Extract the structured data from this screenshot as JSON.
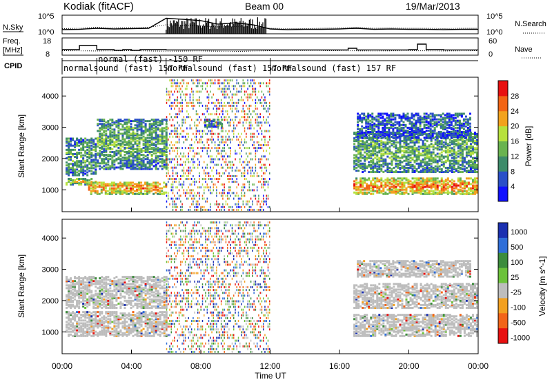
{
  "chart_data": [
    {
      "type": "line",
      "panel": "noise",
      "title": "Kodiak (fitACF)",
      "beam_label": "Beam 00",
      "date": "19/Mar/2013",
      "left_label": "N.Sky",
      "right_label": "N.Search",
      "left_ticks": [
        "10^5",
        "10^0"
      ],
      "right_ticks": [
        "10^5",
        "10^0"
      ],
      "series": [
        {
          "name": "N.Sky",
          "x": [
            0,
            1,
            2,
            3,
            4,
            5,
            6,
            7,
            8,
            9,
            10,
            11,
            12,
            13,
            14,
            15,
            16,
            17,
            18,
            19,
            20,
            21,
            22,
            23,
            24
          ],
          "y": [
            1.2,
            1.3,
            1.6,
            1.4,
            1.5,
            1.6,
            4.5,
            4.2,
            3.8,
            2.8,
            3.2,
            2.6,
            1.4,
            1.2,
            1.3,
            1.3,
            1.4,
            1.6,
            1.3,
            1.4,
            1.3,
            1.3,
            1.2,
            1.3,
            1.3
          ]
        },
        {
          "name": "N.Search",
          "x": [
            0,
            1,
            2,
            3,
            4,
            5,
            6,
            7,
            8,
            9,
            10,
            11,
            12,
            13,
            14,
            15,
            16,
            17,
            18,
            19,
            20,
            21,
            22,
            23,
            24
          ],
          "y": [
            1.5,
            1.6,
            1.9,
            1.7,
            1.8,
            1.9,
            2.6,
            2.5,
            2.3,
            2.0,
            2.1,
            1.9,
            1.6,
            1.5,
            1.5,
            1.6,
            1.7,
            1.9,
            1.6,
            1.7,
            1.6,
            1.6,
            1.5,
            1.6,
            1.6
          ]
        }
      ]
    },
    {
      "type": "line",
      "panel": "frequency",
      "left_label": "Freq.",
      "left_unit": "[MHz]",
      "right_label": "Nave",
      "left_ticks": [
        "18",
        "8"
      ],
      "right_ticks": [
        "60",
        "0"
      ],
      "series": [
        {
          "name": "Freq.",
          "x": [
            0,
            0.5,
            1,
            1.5,
            2,
            2.5,
            3,
            3.5,
            4,
            4.5,
            5,
            6,
            8,
            10,
            12,
            14,
            15,
            16,
            16.5,
            17,
            18,
            19,
            20,
            20.5,
            21,
            22,
            24
          ],
          "y": [
            11,
            11,
            14,
            14,
            11,
            11,
            10.5,
            11,
            10.5,
            11,
            11,
            10.8,
            10.8,
            10.8,
            10.8,
            10.8,
            10.8,
            10.8,
            12,
            10.8,
            10.8,
            10.8,
            11,
            15,
            11,
            10.8,
            10.8
          ]
        },
        {
          "name": "Nave",
          "x": [
            0,
            2,
            4,
            6,
            8,
            10,
            12,
            14,
            16,
            18,
            20,
            22,
            24
          ],
          "y": [
            15,
            14,
            15,
            13,
            14,
            12,
            15,
            16,
            15,
            14,
            15,
            14,
            15
          ]
        }
      ]
    },
    {
      "type": "table",
      "panel": "cpid",
      "label": "CPID",
      "segments": [
        {
          "start": 0,
          "end": 2,
          "name": "normalsound (fast) 157 RF"
        },
        {
          "start": 2,
          "end": 6,
          "name": "normal (fast) -150 RF"
        },
        {
          "start": 6,
          "end": 12,
          "name": "normalsound (fast) 157 RF"
        },
        {
          "start": 12,
          "end": 24,
          "name": "normalsound (fast) 157 RF"
        }
      ]
    },
    {
      "type": "heatmap",
      "panel": "power",
      "ylabel": "Slant Range [km]",
      "y_ticks": [
        1000,
        2000,
        3000,
        4000
      ],
      "ylim": [
        300,
        4600
      ],
      "xlim": [
        0,
        24
      ],
      "colorbar_label": "Power [dB]",
      "colorbar_ticks": [
        4,
        8,
        12,
        16,
        20,
        24,
        28
      ],
      "colorbar_colors": [
        "#1010ff",
        "#2a4fc8",
        "#3d8b6a",
        "#69b34f",
        "#b7e13d",
        "#f2a21d",
        "#f26414",
        "#e81010"
      ],
      "bands": [
        {
          "t0": 0.2,
          "t1": 2.0,
          "r0": 1200,
          "r1": 1400,
          "level": 0.6
        },
        {
          "t0": 0.2,
          "t1": 2.0,
          "r0": 1500,
          "r1": 2700,
          "level": 0.35
        },
        {
          "t0": 1.5,
          "t1": 6.0,
          "r0": 900,
          "r1": 1300,
          "level": 0.8
        },
        {
          "t0": 2.0,
          "t1": 6.0,
          "r0": 1700,
          "r1": 3300,
          "level": 0.4
        },
        {
          "t0": 8.2,
          "t1": 9.2,
          "r0": 3050,
          "r1": 3300,
          "level": 0.3
        },
        {
          "t0": 16.8,
          "t1": 24.0,
          "r0": 900,
          "r1": 1400,
          "level": 0.85
        },
        {
          "t0": 16.8,
          "t1": 24.0,
          "r0": 1600,
          "r1": 2900,
          "level": 0.4
        },
        {
          "t0": 17.0,
          "t1": 23.5,
          "r0": 2700,
          "r1": 3500,
          "level": 0.2
        }
      ]
    },
    {
      "type": "heatmap",
      "panel": "velocity",
      "ylabel": "Slant Range [km]",
      "xlabel": "Time UT",
      "x_ticks": [
        "00:00",
        "04:00",
        "08:00",
        "12:00",
        "16:00",
        "20:00",
        "00:00"
      ],
      "y_ticks": [
        1000,
        2000,
        3000,
        4000
      ],
      "ylim": [
        300,
        4600
      ],
      "xlim": [
        0,
        24
      ],
      "colorbar_label": "Velocity [m s^-1]",
      "colorbar_ticks": [
        1000,
        500,
        100,
        25,
        -25,
        -100,
        -500,
        -1000
      ],
      "colorbar_colors": [
        "#1a2fb0",
        "#2f6ed8",
        "#3c8c3c",
        "#6cc23a",
        "#bdbdbd",
        "#f2a020",
        "#f26418",
        "#e81010"
      ],
      "bands": [
        {
          "t0": 0.2,
          "t1": 6.0,
          "r0": 900,
          "r1": 1700,
          "level": 0.5
        },
        {
          "t0": 0.2,
          "t1": 6.0,
          "r0": 1800,
          "r1": 2800,
          "level": 0.5
        },
        {
          "t0": 16.8,
          "t1": 24.0,
          "r0": 900,
          "r1": 1600,
          "level": 0.5
        },
        {
          "t0": 16.8,
          "t1": 24.0,
          "r0": 1800,
          "r1": 2600,
          "level": 0.5
        },
        {
          "t0": 17.0,
          "t1": 23.5,
          "r0": 2800,
          "r1": 3300,
          "level": 0.5
        }
      ]
    }
  ]
}
